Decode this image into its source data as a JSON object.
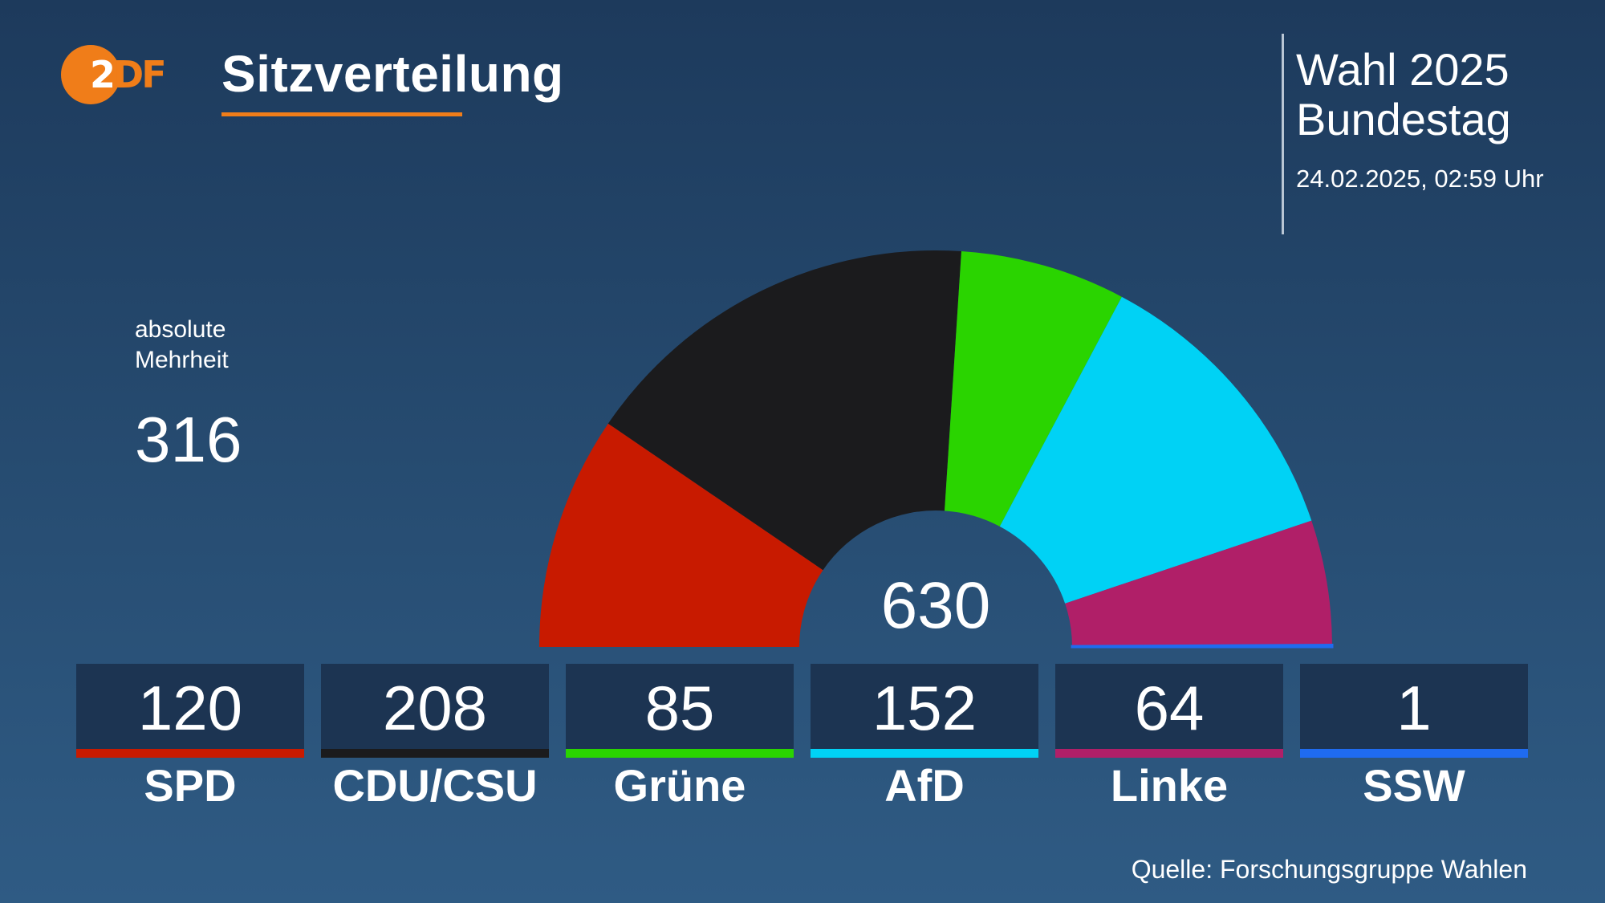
{
  "header": {
    "logo_text": "2DF",
    "title": "Sitzverteilung",
    "election_line1": "Wahl 2025",
    "election_line2": "Bundestag",
    "timestamp": "24.02.2025, 02:59 Uhr"
  },
  "majority": {
    "label_line1": "absolute",
    "label_line2": "Mehrheit",
    "value": "316"
  },
  "footer": {
    "source": "Quelle: Forschungsgruppe Wahlen"
  },
  "colors": {
    "background": "#264b70",
    "accent": "#f07d19",
    "card": "#1c3452"
  },
  "chart_data": {
    "type": "pie",
    "subtype": "parliament-half-donut",
    "title": "Sitzverteilung",
    "total_label": "630",
    "total": 630,
    "categories": [
      "SPD",
      "CDU/CSU",
      "Grüne",
      "AfD",
      "Linke",
      "SSW"
    ],
    "values": [
      120,
      208,
      85,
      152,
      64,
      1
    ],
    "colors": [
      "#c81a00",
      "#1b1b1d",
      "#2ad400",
      "#00d2f5",
      "#b01f68",
      "#1f6bf0"
    ],
    "value_labels": [
      "120",
      "208",
      "85",
      "152",
      "64",
      "1"
    ]
  }
}
